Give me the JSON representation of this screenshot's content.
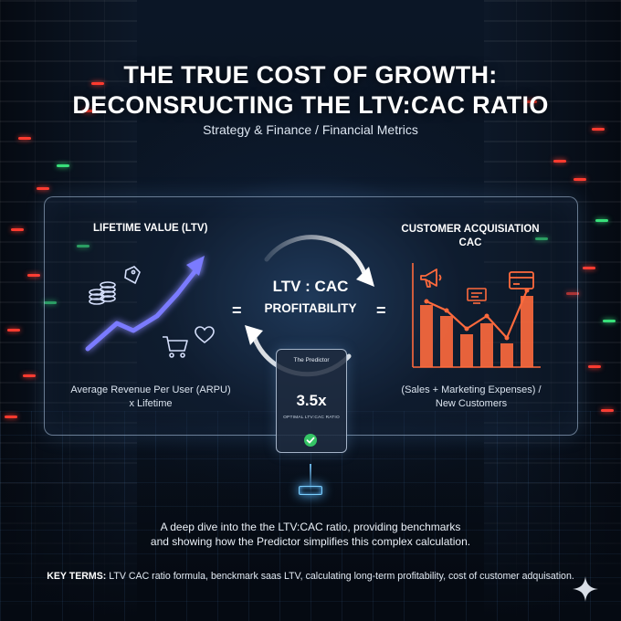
{
  "header": {
    "title_line1": "THE TRUE COST OF GROWTH:",
    "title_line2": "DECONSRUCTING THE LTV:CAC RATIO",
    "subtitle": "Strategy & Finance / Financial Metrics"
  },
  "ltv": {
    "heading": "LIFETIME VALUE (LTV)",
    "formula_line1": "Average Revenue Per User (ARPU)",
    "formula_line2": "x Lifetime",
    "icons": [
      "coins-icon",
      "money-tag-icon",
      "cart-icon",
      "heart-icon",
      "growth-arrow-icon"
    ]
  },
  "cac": {
    "heading_line1": "CUSTOMER ACQUISIATION",
    "heading_line2": "CAC",
    "formula_line1": "(Sales + Marketing Expenses) /",
    "formula_line2": "New Customers",
    "icons": [
      "megaphone-icon",
      "credit-card-icon",
      "monitor-icon",
      "bar-chart-icon"
    ]
  },
  "center": {
    "ratio": "LTV : CAC",
    "profitability": "PROFITABILITY",
    "equals": "="
  },
  "predictor_card": {
    "title": "The Predictor",
    "value": "3.5x",
    "label": "OPTIMAL LTV:CAC RATIO"
  },
  "summary": {
    "line1": "A deep dive into the the LTV:CAC ratio, providing benchmarks",
    "line2": "and showing how the Predictor simplifies this complex calculation."
  },
  "key_terms": {
    "label": "KEY TERMS:",
    "text": "LTV CAC ratio formula, benckmark saas LTV, calculating long-term profitability, cost of customer adquisation."
  },
  "colors": {
    "arrow_violet": "#7b7bff",
    "bar_orange": "#ff6a3d",
    "check_green": "#35c465",
    "led_red": "#ff3b2f",
    "led_green": "#38e07a"
  }
}
